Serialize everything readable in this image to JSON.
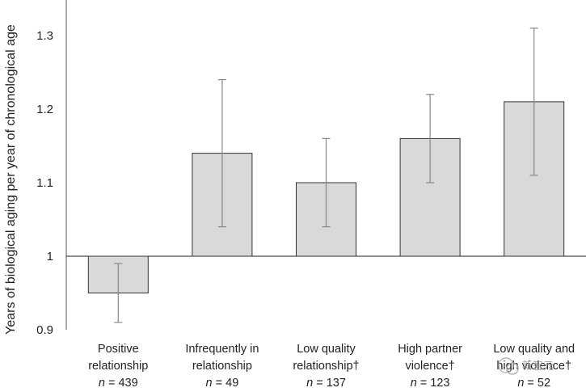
{
  "chart_data": {
    "type": "bar",
    "ylabel": "Years of biological aging per year of chronological age",
    "ylim": [
      0.9,
      1.3
    ],
    "yticks": [
      "0.9",
      "1",
      "1.1",
      "1.2",
      "1.3"
    ],
    "baseline": 1.0,
    "categories": [
      {
        "lines": [
          "Positive",
          "relationship"
        ],
        "n": "439"
      },
      {
        "lines": [
          "Infrequently in",
          "relationship"
        ],
        "n": "49"
      },
      {
        "lines": [
          "Low quality",
          "relationship†"
        ],
        "n": "137"
      },
      {
        "lines": [
          "High partner",
          "violence†"
        ],
        "n": "123"
      },
      {
        "lines": [
          "Low quality and",
          "high violence†"
        ],
        "n": "52"
      }
    ],
    "values": [
      0.95,
      1.14,
      1.1,
      1.16,
      1.21
    ],
    "error_low": [
      0.91,
      1.04,
      1.04,
      1.1,
      1.11
    ],
    "error_high": [
      0.99,
      1.24,
      1.16,
      1.22,
      1.31
    ],
    "n_prefix": "n",
    "n_sep": " = ",
    "bar_color": "#d9d9d9",
    "bar_edge": "#333333",
    "error_color": "#888888",
    "grid": false
  },
  "watermark": {
    "text": "新智元"
  }
}
